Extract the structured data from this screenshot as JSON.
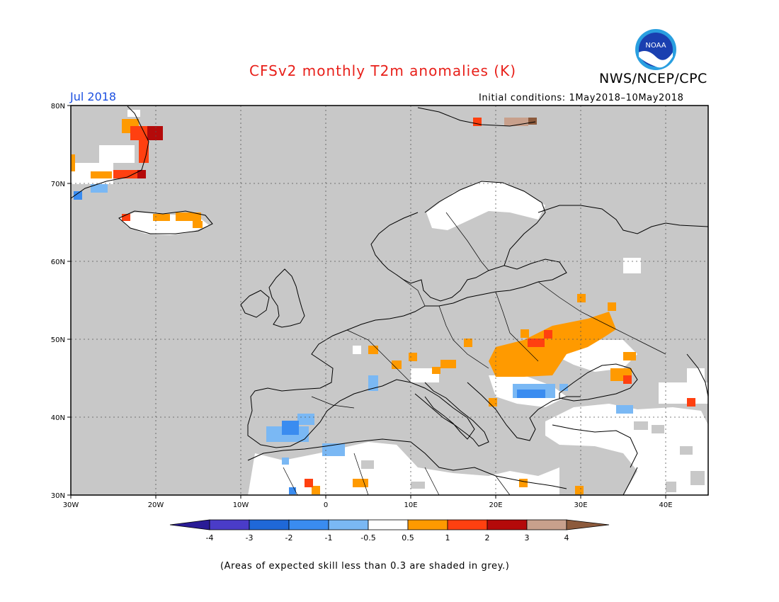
{
  "header": {
    "title": "CFSv2 monthly T2m anomalies (K)",
    "agency": "NWS/NCEP/CPC",
    "period": "Jul 2018",
    "initial_conditions": "Initial conditions: 1May2018–10May2018",
    "logo_text": "NOAA"
  },
  "map": {
    "projection": "lat-lon",
    "lon_range": [
      -30,
      45
    ],
    "lat_range": [
      30,
      80
    ],
    "background_color": "#c8c8c8",
    "lat_ticks": [
      "80N",
      "70N",
      "60N",
      "50N",
      "40N",
      "30N"
    ],
    "lon_ticks": [
      "30W",
      "20W",
      "10W",
      "0",
      "10E",
      "20E",
      "30E",
      "40E"
    ]
  },
  "colorbar": {
    "colors": [
      "#2a1c96",
      "#4a3cc8",
      "#1f68d8",
      "#3a8cf0",
      "#7ab8f4",
      "#ffffff",
      "#ff9a00",
      "#ff4010",
      "#b40a0a",
      "#c8a08c",
      "#8c5a3c"
    ],
    "labels": [
      "-4",
      "-3",
      "-2",
      "-1",
      "-0.5",
      "0.5",
      "1",
      "2",
      "3",
      "4"
    ]
  },
  "footnote": "(Areas of expected skill less than 0.3 are shaded in grey.)"
}
